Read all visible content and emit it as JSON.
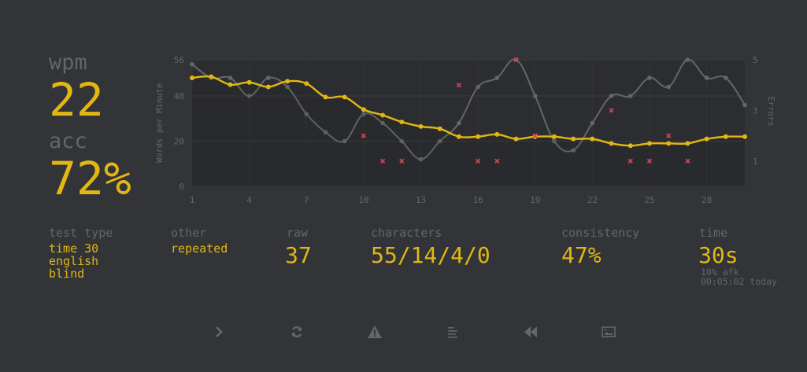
{
  "stats": {
    "wpm_label": "wpm",
    "wpm": "22",
    "acc_label": "acc",
    "acc": "72%"
  },
  "details": {
    "test_type_label": "test type",
    "test_type": [
      "time 30",
      "english",
      "blind"
    ],
    "other_label": "other",
    "other": "repeated",
    "raw_label": "raw",
    "raw": "37",
    "characters_label": "characters",
    "characters": "55/14/4/0",
    "consistency_label": "consistency",
    "consistency": "47%",
    "time_label": "time",
    "time": "30s",
    "afk": "10% afk",
    "timestamp": "00:05:02 today"
  },
  "buttons": [
    {
      "name": "next-test",
      "icon": "chevron-right-icon"
    },
    {
      "name": "restart-test",
      "icon": "refresh-icon"
    },
    {
      "name": "report",
      "icon": "warning-icon"
    },
    {
      "name": "word-history",
      "icon": "align-left-icon"
    },
    {
      "name": "replay",
      "icon": "backward-icon"
    },
    {
      "name": "screenshot",
      "icon": "image-icon"
    }
  ],
  "colors": {
    "background": "#323437",
    "main": "#e2b714",
    "sub": "#646669",
    "error": "#ca4754"
  },
  "chart_data": {
    "type": "line",
    "ylabel": "Words per Minute",
    "y2label": "Errors",
    "x": [
      1,
      2,
      3,
      4,
      5,
      6,
      7,
      8,
      9,
      10,
      11,
      12,
      13,
      14,
      15,
      16,
      17,
      18,
      19,
      20,
      21,
      22,
      23,
      24,
      25,
      26,
      27,
      28,
      29,
      30
    ],
    "xticks": [
      "1",
      "4",
      "7",
      "10",
      "13",
      "16",
      "19",
      "22",
      "25",
      "28"
    ],
    "yticks": [
      "0",
      "20",
      "40",
      "56"
    ],
    "y2ticks": [
      "1",
      "3",
      "5"
    ],
    "ylim": [
      0,
      56
    ],
    "y2lim": [
      0,
      5
    ],
    "grid": true,
    "series": [
      {
        "key": "wpm",
        "color": "#e2b714",
        "values": [
          48,
          48.5,
          45,
          46,
          44,
          46.5,
          45.5,
          39.5,
          39.5,
          34,
          31.5,
          28.5,
          26.5,
          25.5,
          22,
          22,
          23,
          21,
          22,
          22,
          21,
          21,
          19,
          18,
          19,
          19,
          19,
          21,
          22,
          22
        ]
      },
      {
        "key": "raw",
        "color": "#646669",
        "values": [
          54,
          48,
          48,
          40,
          48,
          44,
          32,
          24,
          20,
          32,
          28,
          20,
          12,
          20,
          28,
          44,
          48,
          56,
          40,
          20,
          16,
          28,
          40,
          40,
          48,
          44,
          56,
          48,
          48,
          36
        ]
      },
      {
        "key": "errors",
        "color": "#ca4754",
        "axis": "right",
        "points": [
          [
            10,
            2
          ],
          [
            11,
            1
          ],
          [
            12,
            1
          ],
          [
            15,
            4
          ],
          [
            16,
            1
          ],
          [
            17,
            1
          ],
          [
            18,
            5
          ],
          [
            19,
            2
          ],
          [
            23,
            3
          ],
          [
            24,
            1
          ],
          [
            25,
            1
          ],
          [
            26,
            2
          ],
          [
            27,
            1
          ]
        ]
      }
    ]
  }
}
